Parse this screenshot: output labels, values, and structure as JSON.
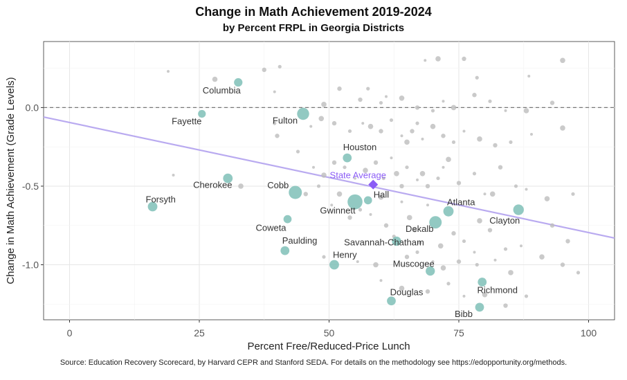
{
  "chart_data": {
    "type": "scatter",
    "title": "Change in Math Achievement 2019-2024",
    "subtitle": "by Percent FRPL in Georgia Districts",
    "xlabel": "Percent Free/Reduced-Price Lunch",
    "ylabel": "Change in Math Achievement (Grade Levels)",
    "xlim": [
      -5,
      105
    ],
    "ylim": [
      -1.35,
      0.42
    ],
    "xticks": [
      0,
      25,
      50,
      75,
      100
    ],
    "xtick_labels": [
      "0",
      "25",
      "50",
      "75",
      "100"
    ],
    "yticks": [
      0,
      -0.5,
      -1.0
    ],
    "ytick_labels": [
      "0.0",
      "-0.5",
      "-1.0"
    ],
    "grid": true,
    "reference_line": {
      "y": 0
    },
    "trend_line": {
      "x": [
        -5,
        105
      ],
      "y": [
        -0.06,
        -0.83
      ],
      "color": "#b9aaf0"
    },
    "state_average": {
      "label": "State Average",
      "x": 58.5,
      "y": -0.49,
      "color": "#8b5cf6"
    },
    "colors": {
      "highlight": "#7fbfb7",
      "background": "#bdbdbd",
      "state": "#8b5cf6",
      "trend": "#b9aaf0",
      "zero_line": "#777777"
    },
    "highlighted_districts": [
      {
        "name": "Columbia",
        "x": 32.5,
        "y": 0.16,
        "size": 1.2
      },
      {
        "name": "Fayette",
        "x": 25.5,
        "y": -0.04,
        "size": 1.0
      },
      {
        "name": "Fulton",
        "x": 45,
        "y": -0.04,
        "size": 2.2
      },
      {
        "name": "Houston",
        "x": 53.5,
        "y": -0.32,
        "size": 1.3
      },
      {
        "name": "Cherokee",
        "x": 30.5,
        "y": -0.45,
        "size": 1.5
      },
      {
        "name": "Forsyth",
        "x": 16,
        "y": -0.63,
        "size": 1.5
      },
      {
        "name": "Cobb",
        "x": 43.5,
        "y": -0.54,
        "size": 2.5
      },
      {
        "name": "Gwinnett",
        "x": 55,
        "y": -0.6,
        "size": 3.0
      },
      {
        "name": "Hall",
        "x": 57.5,
        "y": -0.59,
        "size": 1.1
      },
      {
        "name": "Atlanta",
        "x": 73,
        "y": -0.66,
        "size": 1.7
      },
      {
        "name": "Clayton",
        "x": 86.5,
        "y": -0.65,
        "size": 1.8
      },
      {
        "name": "Coweta",
        "x": 42,
        "y": -0.71,
        "size": 1.1
      },
      {
        "name": "Dekalb",
        "x": 70.5,
        "y": -0.73,
        "size": 2.3
      },
      {
        "name": "Paulding",
        "x": 41.5,
        "y": -0.91,
        "size": 1.3
      },
      {
        "name": "Savannah-Chatham",
        "x": 63,
        "y": -0.85,
        "size": 1.4
      },
      {
        "name": "Henry",
        "x": 51,
        "y": -1.0,
        "size": 1.5
      },
      {
        "name": "Muscogee",
        "x": 69.5,
        "y": -1.04,
        "size": 1.4
      },
      {
        "name": "Richmond",
        "x": 79.5,
        "y": -1.11,
        "size": 1.3
      },
      {
        "name": "Douglas",
        "x": 62,
        "y": -1.23,
        "size": 1.3
      },
      {
        "name": "Bibb",
        "x": 79,
        "y": -1.27,
        "size": 1.3
      }
    ],
    "other_districts": [
      [
        19,
        0.23
      ],
      [
        28,
        0.18
      ],
      [
        37.5,
        0.24
      ],
      [
        40.5,
        0.26
      ],
      [
        39.5,
        0.1
      ],
      [
        49,
        0.02
      ],
      [
        52,
        0.12
      ],
      [
        57.5,
        0.12
      ],
      [
        68.5,
        0.3
      ],
      [
        71,
        0.31
      ],
      [
        76,
        0.31
      ],
      [
        78.5,
        0.19
      ],
      [
        88.5,
        0.2
      ],
      [
        95,
        0.3
      ],
      [
        56,
        0.05
      ],
      [
        60,
        0.03
      ],
      [
        61,
        0.07
      ],
      [
        64,
        0.06
      ],
      [
        67,
        0.0
      ],
      [
        70,
        -0.02
      ],
      [
        72,
        0.04
      ],
      [
        74,
        0.0
      ],
      [
        78,
        0.08
      ],
      [
        81,
        0.04
      ],
      [
        84,
        -0.02
      ],
      [
        88,
        -0.02
      ],
      [
        93,
        0.03
      ],
      [
        39.5,
        -0.1
      ],
      [
        46.5,
        -0.12
      ],
      [
        48.5,
        -0.07
      ],
      [
        51,
        -0.1
      ],
      [
        54,
        -0.15
      ],
      [
        56.5,
        -0.1
      ],
      [
        58,
        -0.12
      ],
      [
        60,
        -0.15
      ],
      [
        62,
        -0.08
      ],
      [
        64,
        -0.18
      ],
      [
        65,
        -0.22
      ],
      [
        66,
        -0.15
      ],
      [
        67,
        -0.1
      ],
      [
        68,
        -0.2
      ],
      [
        70,
        -0.12
      ],
      [
        72,
        -0.18
      ],
      [
        74,
        -0.22
      ],
      [
        76,
        -0.15
      ],
      [
        79,
        -0.2
      ],
      [
        82,
        -0.24
      ],
      [
        85,
        -0.22
      ],
      [
        89,
        -0.17
      ],
      [
        95,
        -0.13
      ],
      [
        40,
        -0.18
      ],
      [
        44,
        -0.28
      ],
      [
        47,
        -0.38
      ],
      [
        49,
        -0.43
      ],
      [
        51,
        -0.35
      ],
      [
        53,
        -0.38
      ],
      [
        55,
        -0.45
      ],
      [
        57,
        -0.4
      ],
      [
        59,
        -0.35
      ],
      [
        60.5,
        -0.45
      ],
      [
        62,
        -0.32
      ],
      [
        63,
        -0.42
      ],
      [
        64,
        -0.5
      ],
      [
        65,
        -0.38
      ],
      [
        67,
        -0.46
      ],
      [
        68,
        -0.42
      ],
      [
        69,
        -0.5
      ],
      [
        71,
        -0.45
      ],
      [
        72,
        -0.38
      ],
      [
        73,
        -0.33
      ],
      [
        75,
        -0.48
      ],
      [
        78,
        -0.42
      ],
      [
        80,
        -0.55
      ],
      [
        81.5,
        -0.55
      ],
      [
        83,
        -0.38
      ],
      [
        86,
        -0.5
      ],
      [
        88,
        -0.52
      ],
      [
        92,
        -0.58
      ],
      [
        93,
        -0.75
      ],
      [
        97,
        -0.55
      ],
      [
        20,
        -0.43
      ],
      [
        33,
        -0.5
      ],
      [
        45.5,
        -0.55
      ],
      [
        48,
        -0.5
      ],
      [
        50.5,
        -0.62
      ],
      [
        52,
        -0.55
      ],
      [
        54,
        -0.7
      ],
      [
        56,
        -0.65
      ],
      [
        58,
        -0.68
      ],
      [
        60,
        -0.57
      ],
      [
        61,
        -0.75
      ],
      [
        62.5,
        -0.82
      ],
      [
        64,
        -0.6
      ],
      [
        65.5,
        -0.7
      ],
      [
        66.5,
        -0.78
      ],
      [
        67.5,
        -0.86
      ],
      [
        69,
        -0.62
      ],
      [
        71.5,
        -0.88
      ],
      [
        74,
        -0.8
      ],
      [
        76,
        -0.85
      ],
      [
        78,
        -0.92
      ],
      [
        79,
        -0.72
      ],
      [
        81,
        -0.78
      ],
      [
        84,
        -0.9
      ],
      [
        87,
        -0.88
      ],
      [
        91,
        -0.95
      ],
      [
        96,
        -0.85
      ],
      [
        49,
        -0.95
      ],
      [
        55.5,
        -0.98
      ],
      [
        59,
        -1.0
      ],
      [
        65,
        -0.95
      ],
      [
        67,
        -0.92
      ],
      [
        70,
        -0.98
      ],
      [
        72,
        -1.02
      ],
      [
        75,
        -0.98
      ],
      [
        78.5,
        -1.0
      ],
      [
        82,
        -0.97
      ],
      [
        85,
        -1.05
      ],
      [
        95,
        -1.0
      ],
      [
        98,
        -1.05
      ],
      [
        60,
        -1.1
      ],
      [
        64,
        -1.15
      ],
      [
        69,
        -1.17
      ],
      [
        73,
        -1.12
      ],
      [
        76,
        -1.2
      ],
      [
        80,
        -1.19
      ],
      [
        84,
        -1.26
      ],
      [
        88,
        -1.2
      ]
    ]
  },
  "caption": "Source: Education Recovery Scorecard, by Harvard CEPR and Stanford SEDA. For details on the methodology see https://edopportunity.org/methods."
}
